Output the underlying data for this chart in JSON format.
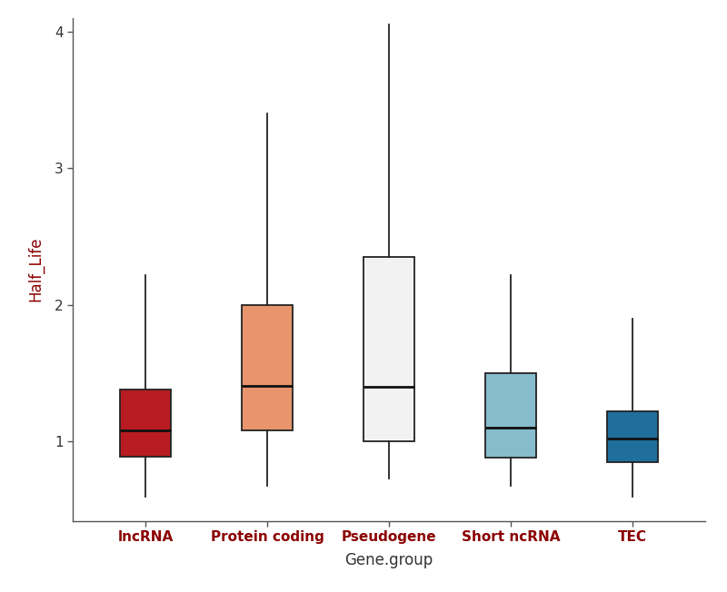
{
  "categories": [
    "lncRNA",
    "Protein coding",
    "Pseudogene",
    "Short ncRNA",
    "TEC"
  ],
  "box_colors": [
    "#b81c22",
    "#e8956d",
    "#f2f2f2",
    "#87bccc",
    "#1f6e9c"
  ],
  "box_edge_color": "#222222",
  "median_color": "#111111",
  "whisker_color": "#222222",
  "xlabel": "Gene.group",
  "ylabel": "Half_Life",
  "xlabel_color": "#333333",
  "ylabel_color": "#8b0000",
  "xtick_label_color": "#8b0000",
  "ytick_label_color": "#333333",
  "ylim": [
    0.42,
    4.1
  ],
  "yticks": [
    1,
    2,
    3,
    4
  ],
  "background_color": "#ffffff",
  "box_stats": [
    {
      "whislo": 0.6,
      "q1": 0.89,
      "med": 1.08,
      "q3": 1.38,
      "whishi": 2.22
    },
    {
      "whislo": 0.68,
      "q1": 1.08,
      "med": 1.41,
      "q3": 2.0,
      "whishi": 3.4
    },
    {
      "whislo": 0.73,
      "q1": 1.0,
      "med": 1.4,
      "q3": 2.35,
      "whishi": 4.05
    },
    {
      "whislo": 0.68,
      "q1": 0.88,
      "med": 1.1,
      "q3": 1.5,
      "whishi": 2.22
    },
    {
      "whislo": 0.6,
      "q1": 0.85,
      "med": 1.02,
      "q3": 1.22,
      "whishi": 1.9
    }
  ],
  "box_width": 0.42,
  "linewidth": 1.3,
  "median_linewidth": 2.0,
  "figsize": [
    8.0,
    6.52
  ],
  "dpi": 100
}
